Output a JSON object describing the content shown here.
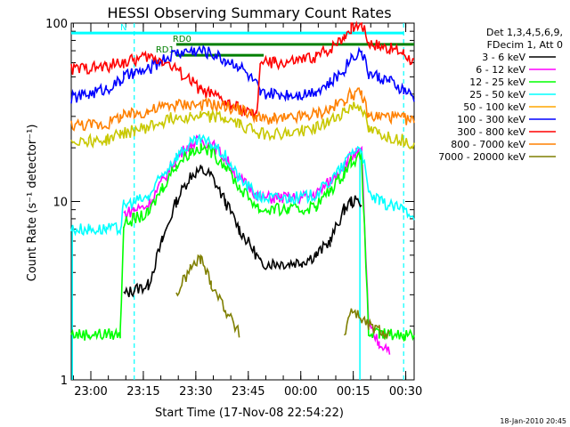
{
  "chart_data": {
    "type": "line",
    "title": "HESSI Observing Summary Count Rates",
    "xlabel": "Start Time (17-Nov-08 22:54:22)",
    "ylabel": "Count Rate (s⁻¹ detector⁻¹)",
    "yscale": "log",
    "ylim": [
      1,
      100
    ],
    "xlim_minutes_from_start": [
      0,
      98
    ],
    "x_tick_labels": [
      "23:00",
      "23:15",
      "23:30",
      "23:45",
      "00:00",
      "00:15",
      "00:30"
    ],
    "x_tick_minutes": [
      5.6,
      20.6,
      35.6,
      50.6,
      65.6,
      80.6,
      95.6
    ],
    "y_tick_labels": [
      "1",
      "10",
      "100"
    ],
    "y_tick_values": [
      1,
      10,
      100
    ],
    "legend_placement": "right",
    "legend_header": [
      "Det 1,3,4,5,6,9,",
      "FDecim 1, Att 0"
    ],
    "annotations": {
      "bars": [
        {
          "label": "N",
          "color": "#00ffff",
          "x": [
            0,
            95
          ],
          "y": 88
        },
        {
          "label": "RD0",
          "color": "#007f00",
          "x": [
            30,
            98
          ],
          "y": 76
        },
        {
          "label": "RD1",
          "color": "#007f00",
          "x": [
            30,
            55
          ],
          "y": 66
        }
      ]
    },
    "x": [
      0,
      5,
      10,
      14,
      15,
      18,
      22,
      26,
      30,
      34,
      37,
      40,
      44,
      48,
      53,
      54,
      58,
      62,
      66,
      70,
      74,
      78,
      80,
      83,
      85,
      88,
      91,
      95,
      98
    ],
    "series": [
      {
        "name": "3 - 6 keV",
        "color": "#000000",
        "values": [
          null,
          null,
          null,
          null,
          3.0,
          3.2,
          3.4,
          6.0,
          10.0,
          14.0,
          15.0,
          14.0,
          10.0,
          7.0,
          5.0,
          4.5,
          4.5,
          4.5,
          4.6,
          5.0,
          6.0,
          9.0,
          10.0,
          10.0,
          null,
          null,
          null,
          null,
          null
        ]
      },
      {
        "name": "6 - 12 keV",
        "color": "#ff00ff",
        "values": [
          null,
          null,
          null,
          null,
          8.5,
          9.0,
          9.5,
          13.0,
          17.5,
          21.0,
          22.0,
          21.0,
          17.5,
          13.5,
          11.0,
          10.5,
          10.5,
          10.5,
          10.5,
          11.0,
          13.0,
          16.0,
          18.0,
          19.0,
          2.0,
          1.6,
          1.5,
          null,
          null
        ]
      },
      {
        "name": "12 - 25 keV",
        "color": "#00ff00",
        "values": [
          1.8,
          1.8,
          1.8,
          1.8,
          7.5,
          8.0,
          8.5,
          12.0,
          16.0,
          19.0,
          20.0,
          19.0,
          16.0,
          12.0,
          9.5,
          9.0,
          9.0,
          9.0,
          9.0,
          9.5,
          11.5,
          14.5,
          17.0,
          17.5,
          1.8,
          1.8,
          1.8,
          1.8,
          1.8
        ]
      },
      {
        "name": "25 - 50 keV",
        "color": "#00ffff",
        "values": [
          7.0,
          7.0,
          7.0,
          7.0,
          9.5,
          10.0,
          10.5,
          14.0,
          18.0,
          21.0,
          22.0,
          21.0,
          18.0,
          13.5,
          11.0,
          10.5,
          10.5,
          10.5,
          10.5,
          11.0,
          13.0,
          16.0,
          19.0,
          20.0,
          11.0,
          10.0,
          9.5,
          9.0,
          8.5
        ]
      },
      {
        "name": "50 - 100 keV",
        "color": "#ffa500",
        "values": [
          null,
          null,
          null,
          null,
          null,
          null,
          null,
          null,
          null,
          null,
          null,
          null,
          null,
          null,
          null,
          null,
          null,
          null,
          null,
          null,
          null,
          null,
          null,
          null,
          null,
          null,
          null,
          null,
          null
        ]
      },
      {
        "name": "100 - 300 keV",
        "color": "#0000ff",
        "values": [
          38,
          40,
          43,
          47,
          50,
          52,
          55,
          62,
          68,
          70,
          70,
          68,
          62,
          58,
          45,
          40,
          40,
          40,
          40,
          42,
          46,
          55,
          65,
          70,
          52,
          50,
          47,
          42,
          38
        ]
      },
      {
        "name": "300 - 800 keV",
        "color": "#ff0000",
        "values": [
          55,
          56,
          57,
          60,
          60,
          62,
          65,
          62,
          55,
          48,
          42,
          40,
          36,
          33,
          30,
          60,
          60,
          60,
          62,
          65,
          72,
          85,
          95,
          100,
          78,
          75,
          72,
          68,
          60
        ]
      },
      {
        "name": "800 - 7000 keV",
        "color": "#ff8000",
        "values": [
          27,
          27,
          27,
          30,
          30,
          31,
          32,
          34,
          35,
          35,
          35,
          35,
          34,
          33,
          30,
          29,
          29,
          29,
          30,
          31,
          33,
          37,
          40,
          40,
          30,
          30,
          30,
          29,
          28
        ]
      },
      {
        "name": "7000 - 20000 keV",
        "color": "#7f7f00",
        "values": [
          null,
          null,
          null,
          null,
          null,
          null,
          null,
          null,
          3.0,
          4.2,
          4.8,
          3.5,
          2.5,
          1.8,
          null,
          null,
          null,
          null,
          null,
          null,
          null,
          1.8,
          2.5,
          2.2,
          2.0,
          1.9,
          1.8,
          null,
          null
        ]
      },
      {
        "name": "",
        "color": "#c8c800",
        "values": [
          22,
          22,
          22,
          24,
          24,
          25,
          26,
          28,
          30,
          30,
          30,
          30,
          29,
          27,
          25,
          24,
          24,
          24,
          25,
          26,
          28,
          32,
          34,
          34,
          25,
          24,
          23,
          22,
          21
        ]
      }
    ]
  },
  "footer": {
    "timestamp": "18-Jan-2010 20:45"
  }
}
